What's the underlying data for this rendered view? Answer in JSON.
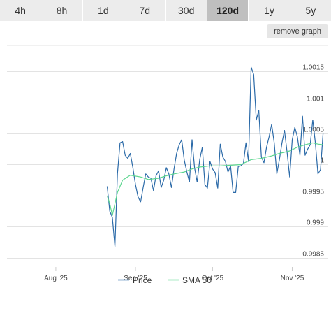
{
  "toolbar": {
    "ranges": [
      "4h",
      "8h",
      "1d",
      "7d",
      "30d",
      "120d",
      "1y",
      "5y"
    ],
    "active_range": "120d",
    "remove_graph_label": "remove graph"
  },
  "colors": {
    "price": "#2b6aa8",
    "sma": "#5cd68f",
    "grid": "#e3e3e3",
    "active_button": "#bfbfbf"
  },
  "chart_data": {
    "type": "line",
    "title": "",
    "xlabel": "",
    "ylabel": "",
    "x_ticks": [
      "Aug '25",
      "Sep '25",
      "Oct '25",
      "Nov '25"
    ],
    "y_ticks": [
      0.9985,
      0.999,
      0.9995,
      1,
      1.0005,
      1.001,
      1.0015
    ],
    "y_tick_labels": [
      "0.9985",
      "0.999",
      "0.9995",
      "1",
      "1.0005",
      "1.001",
      "1.0015"
    ],
    "xlim": [
      "2025-07-13",
      "2025-11-15"
    ],
    "ylim": [
      0.99835,
      1.00192
    ],
    "legend": {
      "position": "bottom-center",
      "entries": [
        "Price",
        "SMA 50"
      ]
    },
    "series": [
      {
        "name": "Price",
        "x": [
          "2025-08-21",
          "2025-08-22",
          "2025-08-23",
          "2025-08-24",
          "2025-08-25",
          "2025-08-26",
          "2025-08-27",
          "2025-08-28",
          "2025-08-29",
          "2025-08-30",
          "2025-08-31",
          "2025-09-01",
          "2025-09-02",
          "2025-09-03",
          "2025-09-04",
          "2025-09-05",
          "2025-09-06",
          "2025-09-07",
          "2025-09-08",
          "2025-09-09",
          "2025-09-10",
          "2025-09-11",
          "2025-09-12",
          "2025-09-13",
          "2025-09-14",
          "2025-09-15",
          "2025-09-16",
          "2025-09-17",
          "2025-09-18",
          "2025-09-19",
          "2025-09-20",
          "2025-09-21",
          "2025-09-22",
          "2025-09-23",
          "2025-09-24",
          "2025-09-25",
          "2025-09-26",
          "2025-09-27",
          "2025-09-28",
          "2025-09-29",
          "2025-09-30",
          "2025-10-01",
          "2025-10-02",
          "2025-10-03",
          "2025-10-04",
          "2025-10-05",
          "2025-10-06",
          "2025-10-07",
          "2025-10-08",
          "2025-10-09",
          "2025-10-10",
          "2025-10-11",
          "2025-10-12",
          "2025-10-13",
          "2025-10-14",
          "2025-10-15",
          "2025-10-16",
          "2025-10-17",
          "2025-10-18",
          "2025-10-19",
          "2025-10-20",
          "2025-10-21",
          "2025-10-22",
          "2025-10-23",
          "2025-10-24",
          "2025-10-25",
          "2025-10-26",
          "2025-10-27",
          "2025-10-28",
          "2025-10-29",
          "2025-10-30",
          "2025-10-31",
          "2025-11-01",
          "2025-11-02",
          "2025-11-03",
          "2025-11-04",
          "2025-11-05",
          "2025-11-06",
          "2025-11-07",
          "2025-11-08",
          "2025-11-09",
          "2025-11-10",
          "2025-11-11",
          "2025-11-12",
          "2025-11-13"
        ],
        "values": [
          0.99965,
          0.99925,
          0.99915,
          0.99868,
          0.99985,
          1.00035,
          1.00037,
          1.00015,
          1.0001,
          1.00018,
          0.99995,
          0.99968,
          0.99948,
          0.9994,
          0.99963,
          0.99985,
          0.9998,
          0.99978,
          0.99958,
          0.99982,
          0.9999,
          0.99963,
          0.99975,
          0.99995,
          0.99985,
          0.99963,
          0.99993,
          1.00018,
          1.00032,
          1.0004,
          1.00007,
          0.99988,
          0.99972,
          1.0004,
          0.99995,
          0.99972,
          1.00008,
          1.00028,
          0.99968,
          0.99962,
          1.00005,
          0.99993,
          0.99987,
          0.99962,
          1.00033,
          1.00012,
          1.00005,
          0.99988,
          0.99998,
          0.99955,
          0.99955,
          0.99997,
          0.99998,
          1.00002,
          1.00035,
          1.00005,
          1.00157,
          1.00145,
          1.00072,
          1.00087,
          1.00012,
          1.00003,
          1.00028,
          1.00045,
          1.00065,
          1.00035,
          0.99985,
          1.00008,
          1.00035,
          1.00055,
          1.0002,
          0.9998,
          1.0004,
          1.0006,
          1.00045,
          1.00015,
          1.00078,
          1.00015,
          1.00025,
          1.00032,
          1.00072,
          1.00035,
          0.99985,
          0.99992,
          1.0005
        ]
      },
      {
        "name": "SMA 50",
        "x": [
          "2025-08-21",
          "2025-08-22",
          "2025-08-23",
          "2025-08-25",
          "2025-08-27",
          "2025-08-30",
          "2025-09-03",
          "2025-09-06",
          "2025-09-10",
          "2025-09-13",
          "2025-09-16",
          "2025-09-20",
          "2025-09-23",
          "2025-09-26",
          "2025-09-30",
          "2025-10-04",
          "2025-10-08",
          "2025-10-12",
          "2025-10-16",
          "2025-10-20",
          "2025-10-24",
          "2025-10-27",
          "2025-10-31",
          "2025-11-03",
          "2025-11-06",
          "2025-11-09",
          "2025-11-11",
          "2025-11-13"
        ],
        "values": [
          0.9995,
          0.99937,
          0.99918,
          0.99955,
          0.99975,
          0.99983,
          0.9998,
          0.99976,
          0.99978,
          0.99982,
          0.99985,
          0.99988,
          0.99993,
          0.99996,
          0.99998,
          0.99998,
          0.99999,
          1.0,
          1.00008,
          1.0001,
          1.00014,
          1.00018,
          1.00022,
          1.00028,
          1.00032,
          1.00035,
          1.00033,
          1.00032
        ]
      }
    ]
  }
}
